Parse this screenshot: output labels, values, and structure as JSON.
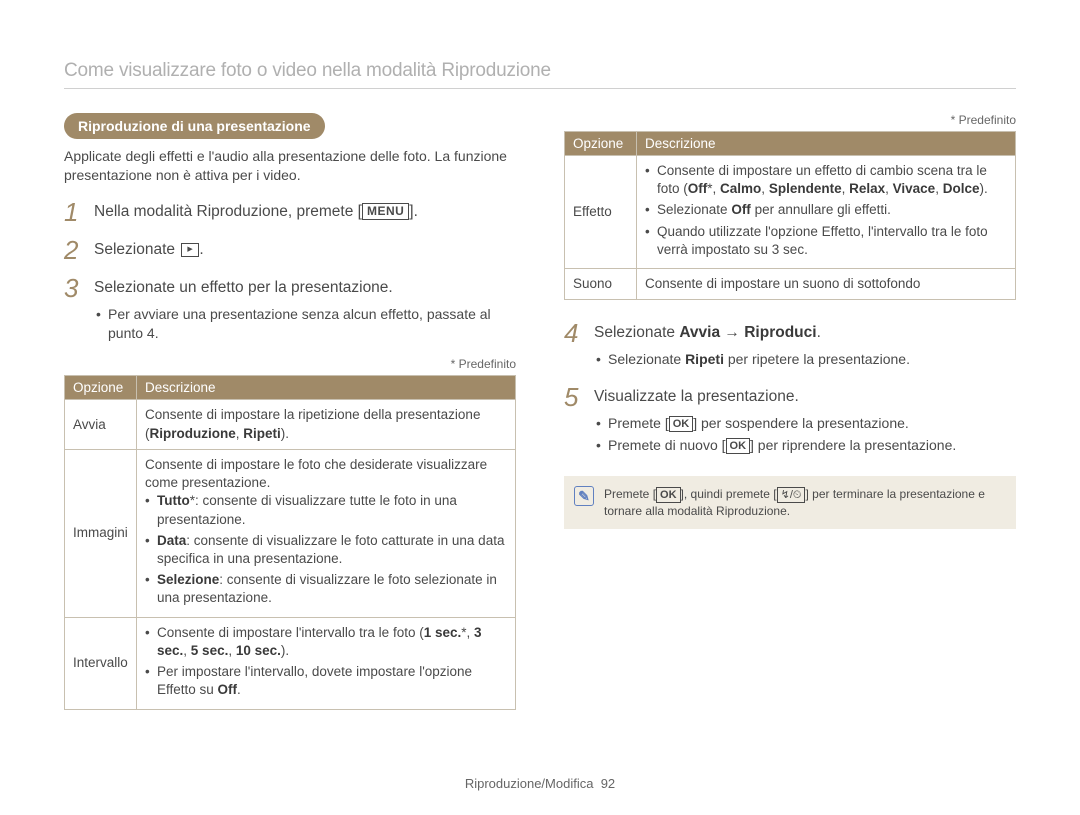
{
  "header": {
    "title": "Come visualizzare foto o video nella modalità Riproduzione"
  },
  "left": {
    "pill": "Riproduzione di una presentazione",
    "intro": "Applicate degli effetti e l'audio alla presentazione delle foto. La funzione presentazione non è attiva per i video.",
    "step1": {
      "num": "1",
      "text": "Nella modalità Riproduzione, premete ",
      "btn": "MENU"
    },
    "step2": {
      "num": "2",
      "text": "Selezionate "
    },
    "step3": {
      "num": "3",
      "text": "Selezionate un effetto per la presentazione.",
      "bullet": "Per avviare una presentazione senza alcun effetto, passate al punto 4."
    },
    "predef": "* Predefinito",
    "th_opt": "Opzione",
    "th_desc": "Descrizione",
    "rows": [
      {
        "opt": "Avvia",
        "desc_html": "Consente di impostare la ripetizione della presentazione (<b>Riproduzione</b>, <b>Ripeti</b>)."
      },
      {
        "opt": "Immagini",
        "desc_html": "Consente di impostare le foto che desiderate visualizzare come presentazione.<ul><li><b>Tutto</b>*: consente di visualizzare tutte le foto in una presentazione.</li><li><b>Data</b>: consente di visualizzare le foto catturate in una data specifica in una presentazione.</li><li><b>Selezione</b>: consente di visualizzare le foto selezionate in una presentazione.</li></ul>"
      },
      {
        "opt": "Intervallo",
        "desc_html": "<ul><li>Consente di impostare l'intervallo tra le foto (<b>1 sec.</b>*, <b>3 sec.</b>, <b>5 sec.</b>, <b>10 sec.</b>).</li><li>Per impostare l'intervallo, dovete impostare l'opzione Effetto su <b>Off</b>.</li></ul>"
      }
    ]
  },
  "right": {
    "predef": "* Predefinito",
    "th_opt": "Opzione",
    "th_desc": "Descrizione",
    "rows": [
      {
        "opt": "Effetto",
        "desc_html": "<ul><li>Consente di impostare un effetto di cambio scena tra le foto (<b>Off</b>*, <b>Calmo</b>, <b>Splendente</b>, <b>Relax</b>, <b>Vivace</b>, <b>Dolce</b>).</li><li>Selezionate <b>Off</b> per annullare gli effetti.</li><li>Quando utilizzate l'opzione Effetto, l'intervallo tra le foto verrà impostato su 3 sec.</li></ul>"
      },
      {
        "opt": "Suono",
        "desc_html": "Consente di impostare un suono di sottofondo"
      }
    ],
    "step4": {
      "num": "4",
      "text_pre": "Selezionate ",
      "text_bold1": "Avvia",
      "arrow": " → ",
      "text_bold2": "Riproduci",
      "bullet_pre": "Selezionate ",
      "bullet_bold": "Ripeti",
      "bullet_post": " per ripetere la presentazione."
    },
    "step5": {
      "num": "5",
      "text": "Visualizzate la presentazione.",
      "bullet1_pre": "Premete ",
      "bullet1_btn": "OK",
      "bullet1_post": " per sospendere la presentazione.",
      "bullet2_pre": "Premete di nuovo ",
      "bullet2_btn": "OK",
      "bullet2_post": " per riprendere la presentazione."
    },
    "note": {
      "pre": "Premete ",
      "btn1": "OK",
      "mid": ", quindi premete ",
      "btn2": "↯/⏲",
      "post": " per terminare la presentazione e tornare alla modalità Riproduzione."
    }
  },
  "footer": {
    "section": "Riproduzione/Modifica",
    "page": "92"
  }
}
